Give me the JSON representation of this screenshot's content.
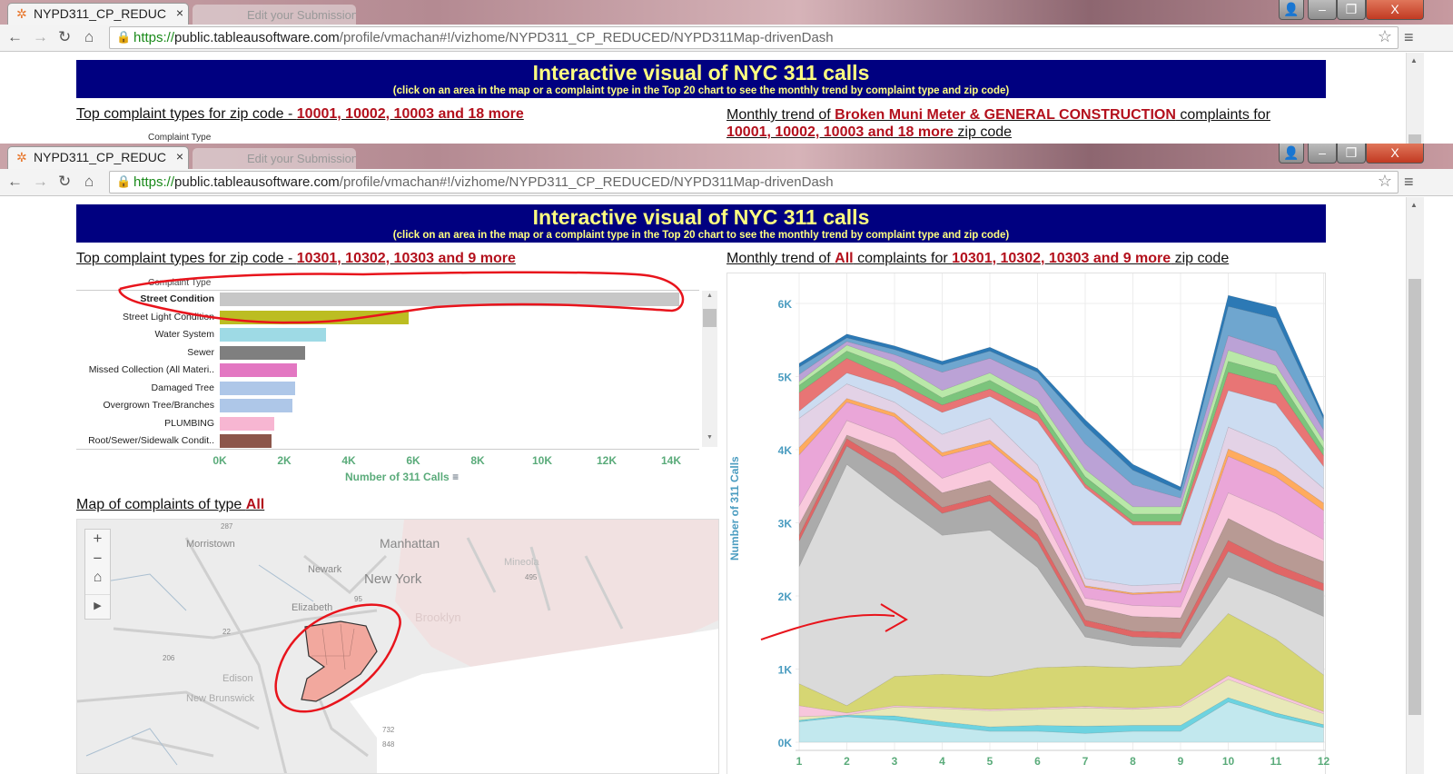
{
  "browser": {
    "tab_title": "NYPD311_CP_REDUC",
    "tab2_title": "Edit your Submission",
    "url_scheme": "https://",
    "url_domain": "public.tableausoftware.com",
    "url_path": "/profile/vmachan#!/vizhome/NYPD311_CP_REDUCED/NYPD311Map-drivenDash",
    "close_tab": "×",
    "window_buttons": {
      "user": "👤",
      "minimize": "–",
      "restore": "❐",
      "close": "X"
    }
  },
  "dashboard_top": {
    "banner_title": "Interactive visual of NYC 311 calls",
    "banner_subtitle": "(click on an area in the map or a complaint type in the Top 20 chart to see the monthly trend by complaint type and zip code)",
    "top_heading_prefix": "Top complaint types for zip code - ",
    "top_heading_zip": "10001, 10002, 10003 and 18 more",
    "trend_prefix": "Monthly trend of ",
    "trend_type": "Broken Muni Meter & GENERAL CONSTRUCTION",
    "trend_mid": " complaints for ",
    "trend_zip": "10001, 10002, 10003 and 18 more",
    "trend_suffix": " zip code",
    "complaint_type_header": "Complaint Type"
  },
  "dashboard": {
    "banner_title": "Interactive visual of NYC 311 calls",
    "banner_subtitle": "(click on an area in the map or a complaint type in the Top 20 chart to see the monthly trend by complaint type and zip code)",
    "top_heading_prefix": "Top complaint types for zip code - ",
    "top_heading_zip": "10301, 10302, 10303 and 9 more",
    "trend_prefix": "Monthly trend of ",
    "trend_type": "All",
    "trend_mid": " complaints for ",
    "trend_zip": "10301, 10302, 10303 and 9 more",
    "trend_suffix": " zip code",
    "map_heading_prefix": "Map of complaints of type ",
    "map_heading_type": "All",
    "map_controls": {
      "zoom_in": "+",
      "zoom_out": "−",
      "home": "⌂",
      "expand": "▶"
    },
    "map_labels": [
      "Morristown",
      "Newark",
      "Manhattan",
      "New York",
      "Elizabeth",
      "Brooklyn",
      "Mineola",
      "Edison",
      "New Brunswick",
      "287",
      "495",
      "95",
      "22",
      "206",
      "732",
      "848"
    ]
  },
  "chart_data": [
    {
      "type": "bar",
      "orientation": "horizontal",
      "ylabel": "Complaint Type",
      "xlabel": "Number of 311 Calls",
      "categories": [
        "Street Condition",
        "Street Light Condition",
        "Water System",
        "Sewer",
        "Missed Collection (All Materi..",
        "Damaged Tree",
        "Overgrown Tree/Branches",
        "PLUMBING",
        "Root/Sewer/Sidewalk Condit.."
      ],
      "values": [
        14250,
        5850,
        3300,
        2650,
        2400,
        2350,
        2250,
        1700,
        1600
      ],
      "colors": [
        "#c7c7c7",
        "#bcbd22",
        "#9edae5",
        "#7f7f7f",
        "#e377c2",
        "#aec7e8",
        "#aec7e8",
        "#f7b6d2",
        "#8c564b"
      ],
      "xlim": [
        0,
        15000
      ],
      "xticks": [
        "0K",
        "2K",
        "4K",
        "6K",
        "8K",
        "10K",
        "12K",
        "14K"
      ],
      "grid": false
    },
    {
      "type": "area",
      "stacked": true,
      "ylabel": "Number of 311 Calls",
      "x": [
        1,
        2,
        3,
        4,
        5,
        6,
        7,
        8,
        9,
        10,
        11,
        12
      ],
      "ylim": [
        0,
        6500
      ],
      "yticks": [
        "0K",
        "1K",
        "2K",
        "3K",
        "4K",
        "5K",
        "6K"
      ],
      "grid": true,
      "series": [
        {
          "color": "#c2e8ee",
          "values": [
            280,
            350,
            300,
            220,
            150,
            150,
            120,
            150,
            150,
            550,
            350,
            200
          ]
        },
        {
          "color": "#6dd3e0",
          "values": [
            20,
            20,
            60,
            60,
            60,
            80,
            100,
            80,
            80,
            60,
            50,
            40
          ]
        },
        {
          "color": "#e8e8b8",
          "values": [
            50,
            0,
            120,
            180,
            220,
            220,
            250,
            220,
            250,
            250,
            220,
            150
          ]
        },
        {
          "color": "#f7c6dc",
          "values": [
            150,
            30,
            20,
            20,
            20,
            20,
            20,
            20,
            20,
            50,
            40,
            30
          ]
        },
        {
          "color": "#d6d673",
          "values": [
            300,
            100,
            400,
            450,
            450,
            550,
            550,
            550,
            550,
            850,
            750,
            500
          ]
        },
        {
          "color": "#dadada",
          "values": [
            1600,
            3300,
            2400,
            1900,
            2000,
            1370,
            400,
            300,
            250,
            500,
            600,
            800
          ]
        },
        {
          "color": "#ababab",
          "values": [
            350,
            250,
            350,
            300,
            400,
            350,
            150,
            120,
            120,
            350,
            300,
            350
          ]
        },
        {
          "color": "#e06666",
          "values": [
            80,
            100,
            100,
            80,
            80,
            100,
            80,
            80,
            80,
            150,
            120,
            100
          ]
        },
        {
          "color": "#b89a94",
          "values": [
            150,
            50,
            200,
            200,
            200,
            200,
            200,
            200,
            200,
            300,
            300,
            300
          ]
        },
        {
          "color": "#f9c9dc",
          "values": [
            250,
            200,
            200,
            200,
            250,
            200,
            100,
            150,
            150,
            350,
            400,
            300
          ]
        },
        {
          "color": "#eaa6d8",
          "values": [
            700,
            250,
            300,
            300,
            250,
            300,
            150,
            150,
            200,
            500,
            500,
            400
          ]
        },
        {
          "color": "#ffab5e",
          "values": [
            100,
            50,
            50,
            50,
            50,
            50,
            20,
            20,
            20,
            100,
            100,
            100
          ]
        },
        {
          "color": "#e3d2e6",
          "values": [
            400,
            200,
            150,
            250,
            300,
            200,
            100,
            100,
            100,
            300,
            300,
            200
          ]
        },
        {
          "color": "#ccdcf1",
          "values": [
            100,
            150,
            200,
            300,
            300,
            600,
            1240,
            830,
            800,
            500,
            600,
            300
          ]
        },
        {
          "color": "#e87575",
          "values": [
            250,
            200,
            100,
            100,
            100,
            100,
            50,
            50,
            50,
            250,
            250,
            150
          ]
        },
        {
          "color": "#7cc47c",
          "values": [
            100,
            100,
            150,
            100,
            120,
            100,
            100,
            100,
            100,
            150,
            150,
            100
          ]
        },
        {
          "color": "#b9e8a8",
          "values": [
            50,
            80,
            100,
            100,
            100,
            100,
            100,
            100,
            100,
            150,
            120,
            100
          ]
        },
        {
          "color": "#bba2d6",
          "values": [
            100,
            50,
            100,
            250,
            200,
            250,
            350,
            300,
            120,
            200,
            200,
            150
          ]
        },
        {
          "color": "#6fa6cf",
          "values": [
            100,
            50,
            70,
            100,
            100,
            120,
            250,
            200,
            100,
            400,
            450,
            150
          ]
        },
        {
          "color": "#2c79b5",
          "values": [
            50,
            50,
            50,
            50,
            50,
            50,
            80,
            80,
            50,
            150,
            150,
            50
          ]
        }
      ]
    }
  ]
}
